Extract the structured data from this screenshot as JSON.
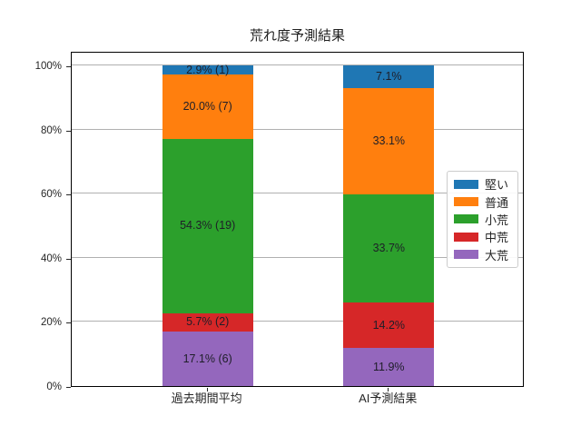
{
  "chart_data": {
    "type": "bar",
    "stacked": true,
    "orientation": "vertical",
    "title": "荒れ度予測結果",
    "categories": [
      "過去期間平均",
      "AI予測結果"
    ],
    "series": [
      {
        "key": "heavy-rough",
        "name": "大荒",
        "color": "#9467bd",
        "values": [
          17.1,
          11.9
        ],
        "labels": [
          "17.1% (6)",
          "11.9%"
        ]
      },
      {
        "key": "mid-rough",
        "name": "中荒",
        "color": "#d62728",
        "values": [
          5.7,
          14.2
        ],
        "labels": [
          "5.7% (2)",
          "14.2%"
        ]
      },
      {
        "key": "light-rough",
        "name": "小荒",
        "color": "#2ca02c",
        "values": [
          54.3,
          33.7
        ],
        "labels": [
          "54.3% (19)",
          "33.7%"
        ]
      },
      {
        "key": "normal",
        "name": "普通",
        "color": "#ff7f0e",
        "values": [
          20.0,
          33.1
        ],
        "labels": [
          "20.0% (7)",
          "33.1%"
        ]
      },
      {
        "key": "firm",
        "name": "堅い",
        "color": "#1f77b4",
        "values": [
          2.9,
          7.1
        ],
        "labels": [
          "2.9% (1)",
          "7.1%"
        ]
      }
    ],
    "legend": {
      "position": "center right",
      "entries": [
        {
          "key": "firm",
          "label": "堅い",
          "color": "#1f77b4"
        },
        {
          "key": "normal",
          "label": "普通",
          "color": "#ff7f0e"
        },
        {
          "key": "light-rough",
          "label": "小荒",
          "color": "#2ca02c"
        },
        {
          "key": "mid-rough",
          "label": "中荒",
          "color": "#d62728"
        },
        {
          "key": "heavy-rough",
          "label": "大荒",
          "color": "#9467bd"
        }
      ]
    },
    "y_ticks": [
      {
        "label": "0%",
        "value": 0
      },
      {
        "label": "20%",
        "value": 20
      },
      {
        "label": "40%",
        "value": 40
      },
      {
        "label": "60%",
        "value": 60
      },
      {
        "label": "80%",
        "value": 80
      },
      {
        "label": "100%",
        "value": 100
      }
    ],
    "ylim": [
      0,
      104.5
    ],
    "grid": true,
    "grid_color": "#b0b0b0",
    "ylabel": "",
    "xlabel": ""
  }
}
